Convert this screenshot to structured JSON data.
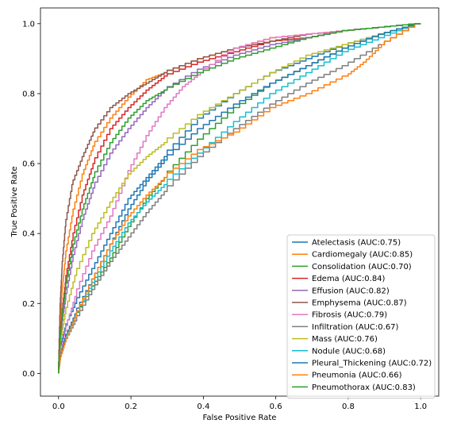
{
  "chart_data": {
    "type": "line",
    "title": "",
    "xlabel": "False Positive Rate",
    "ylabel": "True Positive Rate",
    "xlim": [
      -0.05,
      1.05
    ],
    "ylim": [
      -0.065,
      1.045
    ],
    "x_ticks": [
      "0.0",
      "0.2",
      "0.4",
      "0.6",
      "0.8",
      "1.0"
    ],
    "y_ticks": [
      "0.0",
      "0.2",
      "0.4",
      "0.6",
      "0.8",
      "1.0"
    ],
    "grid": false,
    "legend_position": "bottom-right",
    "series": [
      {
        "name": "Atelectasis (AUC:0.75)",
        "color": "#1f77b4",
        "x": [
          0,
          0.005,
          0.02,
          0.05,
          0.1,
          0.15,
          0.2,
          0.25,
          0.3,
          0.4,
          0.5,
          0.6,
          0.7,
          0.8,
          0.9,
          1.0
        ],
        "y": [
          0,
          0.07,
          0.13,
          0.2,
          0.3,
          0.4,
          0.5,
          0.56,
          0.62,
          0.73,
          0.8,
          0.86,
          0.9,
          0.94,
          0.97,
          1.0
        ]
      },
      {
        "name": "Cardiomegaly (AUC:0.85)",
        "color": "#ff7f0e",
        "x": [
          0,
          0.005,
          0.01,
          0.02,
          0.04,
          0.07,
          0.1,
          0.15,
          0.2,
          0.25,
          0.3,
          0.4,
          0.5,
          0.6,
          0.7,
          0.8,
          0.9,
          1.0
        ],
        "y": [
          0,
          0.14,
          0.23,
          0.33,
          0.45,
          0.57,
          0.65,
          0.73,
          0.79,
          0.84,
          0.86,
          0.9,
          0.93,
          0.96,
          0.97,
          0.98,
          0.99,
          1.0
        ]
      },
      {
        "name": "Consolidation (AUC:0.70)",
        "color": "#2ca02c",
        "x": [
          0,
          0.005,
          0.02,
          0.05,
          0.1,
          0.15,
          0.2,
          0.25,
          0.3,
          0.4,
          0.5,
          0.6,
          0.7,
          0.8,
          0.9,
          1.0
        ],
        "y": [
          0,
          0.05,
          0.1,
          0.16,
          0.25,
          0.33,
          0.42,
          0.5,
          0.56,
          0.67,
          0.76,
          0.83,
          0.88,
          0.93,
          0.97,
          1.0
        ]
      },
      {
        "name": "Edema (AUC:0.84)",
        "color": "#d62728",
        "x": [
          0,
          0.005,
          0.01,
          0.02,
          0.04,
          0.07,
          0.1,
          0.15,
          0.2,
          0.25,
          0.3,
          0.4,
          0.5,
          0.6,
          0.7,
          0.8,
          0.9,
          1.0
        ],
        "y": [
          0,
          0.1,
          0.17,
          0.26,
          0.38,
          0.51,
          0.6,
          0.7,
          0.76,
          0.81,
          0.85,
          0.89,
          0.92,
          0.95,
          0.96,
          0.98,
          0.99,
          1.0
        ]
      },
      {
        "name": "Effusion (AUC:0.82)",
        "color": "#9467bd",
        "x": [
          0,
          0.005,
          0.01,
          0.02,
          0.04,
          0.07,
          0.1,
          0.15,
          0.2,
          0.25,
          0.3,
          0.4,
          0.5,
          0.6,
          0.7,
          0.8,
          0.9,
          1.0
        ],
        "y": [
          0,
          0.08,
          0.14,
          0.21,
          0.32,
          0.44,
          0.53,
          0.63,
          0.7,
          0.76,
          0.81,
          0.87,
          0.91,
          0.94,
          0.96,
          0.98,
          0.99,
          1.0
        ]
      },
      {
        "name": "Emphysema (AUC:0.87)",
        "color": "#8c564b",
        "x": [
          0,
          0.005,
          0.01,
          0.02,
          0.04,
          0.07,
          0.1,
          0.15,
          0.2,
          0.25,
          0.3,
          0.4,
          0.5,
          0.6,
          0.7,
          0.8,
          0.9,
          1.0
        ],
        "y": [
          0,
          0.2,
          0.3,
          0.42,
          0.54,
          0.62,
          0.69,
          0.76,
          0.8,
          0.83,
          0.86,
          0.9,
          0.93,
          0.95,
          0.97,
          0.98,
          0.99,
          1.0
        ]
      },
      {
        "name": "Fibrosis (AUC:0.79)",
        "color": "#e377c2",
        "x": [
          0,
          0.005,
          0.02,
          0.05,
          0.1,
          0.15,
          0.2,
          0.25,
          0.3,
          0.35,
          0.4,
          0.5,
          0.6,
          0.7,
          0.8,
          0.9,
          1.0
        ],
        "y": [
          0,
          0.05,
          0.12,
          0.22,
          0.35,
          0.45,
          0.58,
          0.68,
          0.76,
          0.82,
          0.86,
          0.93,
          0.96,
          0.97,
          0.98,
          0.99,
          1.0
        ]
      },
      {
        "name": "Infiltration (AUC:0.67)",
        "color": "#7f7f7f",
        "x": [
          0,
          0.005,
          0.02,
          0.05,
          0.1,
          0.15,
          0.2,
          0.25,
          0.3,
          0.4,
          0.5,
          0.6,
          0.7,
          0.8,
          0.9,
          1.0
        ],
        "y": [
          0,
          0.04,
          0.09,
          0.15,
          0.24,
          0.32,
          0.39,
          0.46,
          0.52,
          0.62,
          0.7,
          0.77,
          0.83,
          0.88,
          0.94,
          1.0
        ]
      },
      {
        "name": "Mass (AUC:0.76)",
        "color": "#bcbd22",
        "x": [
          0,
          0.005,
          0.02,
          0.05,
          0.1,
          0.15,
          0.2,
          0.25,
          0.3,
          0.4,
          0.5,
          0.6,
          0.7,
          0.8,
          0.9,
          1.0
        ],
        "y": [
          0,
          0.08,
          0.17,
          0.28,
          0.4,
          0.49,
          0.57,
          0.62,
          0.66,
          0.74,
          0.8,
          0.86,
          0.91,
          0.94,
          0.97,
          1.0
        ]
      },
      {
        "name": "Nodule (AUC:0.68)",
        "color": "#17becf",
        "x": [
          0,
          0.005,
          0.02,
          0.05,
          0.1,
          0.15,
          0.2,
          0.25,
          0.3,
          0.4,
          0.5,
          0.6,
          0.7,
          0.8,
          0.9,
          1.0
        ],
        "y": [
          0,
          0.04,
          0.09,
          0.16,
          0.26,
          0.35,
          0.43,
          0.49,
          0.54,
          0.63,
          0.72,
          0.8,
          0.86,
          0.92,
          0.96,
          1.0
        ]
      },
      {
        "name": "Pleural_Thickening (AUC:0.72)",
        "color": "#1f77b4",
        "x": [
          0,
          0.005,
          0.02,
          0.05,
          0.1,
          0.15,
          0.2,
          0.25,
          0.3,
          0.4,
          0.5,
          0.6,
          0.7,
          0.8,
          0.9,
          1.0
        ],
        "y": [
          0,
          0.04,
          0.1,
          0.17,
          0.27,
          0.37,
          0.47,
          0.55,
          0.61,
          0.7,
          0.77,
          0.83,
          0.88,
          0.93,
          0.97,
          1.0
        ]
      },
      {
        "name": "Pneumonia (AUC:0.66)",
        "color": "#ff7f0e",
        "x": [
          0,
          0.005,
          0.02,
          0.05,
          0.1,
          0.15,
          0.2,
          0.25,
          0.3,
          0.4,
          0.5,
          0.6,
          0.7,
          0.8,
          0.85,
          0.9,
          1.0
        ],
        "y": [
          0,
          0.04,
          0.09,
          0.16,
          0.27,
          0.37,
          0.45,
          0.51,
          0.56,
          0.64,
          0.69,
          0.76,
          0.8,
          0.85,
          0.89,
          0.94,
          1.0
        ]
      },
      {
        "name": "Pneumothorax (AUC:0.83)",
        "color": "#2ca02c",
        "x": [
          0,
          0.005,
          0.01,
          0.02,
          0.04,
          0.07,
          0.1,
          0.15,
          0.2,
          0.25,
          0.3,
          0.4,
          0.5,
          0.6,
          0.7,
          0.8,
          0.9,
          1.0
        ],
        "y": [
          0,
          0.1,
          0.16,
          0.24,
          0.35,
          0.47,
          0.56,
          0.66,
          0.73,
          0.78,
          0.81,
          0.86,
          0.9,
          0.93,
          0.96,
          0.98,
          0.99,
          1.0
        ]
      }
    ]
  }
}
